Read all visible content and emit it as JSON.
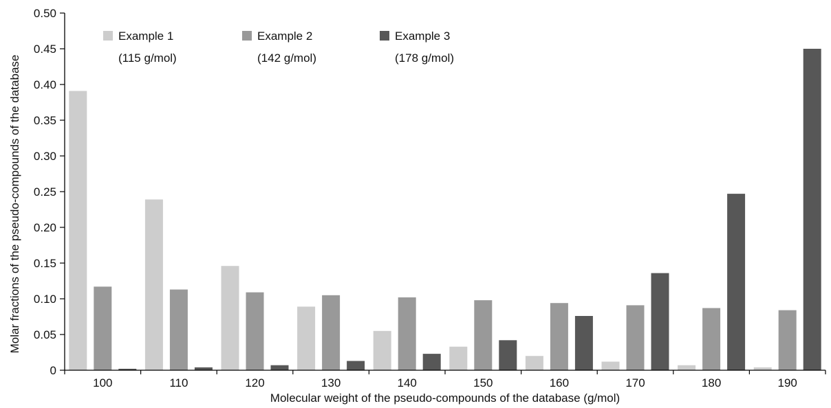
{
  "chart_data": {
    "type": "bar",
    "title": "",
    "xlabel": "Molecular weight of the pseudo-compounds of the database (g/mol)",
    "ylabel": "Molar fractions of the pseudo-compounds of the database",
    "categories": [
      "100",
      "110",
      "120",
      "130",
      "140",
      "150",
      "160",
      "170",
      "180",
      "190"
    ],
    "ylim": [
      0,
      0.5
    ],
    "yticks": [
      "0",
      "0.05",
      "0.10",
      "0.15",
      "0.20",
      "0.25",
      "0.30",
      "0.35",
      "0.40",
      "0.45",
      "0.50"
    ],
    "grid": false,
    "legend_position": "top-left",
    "series": [
      {
        "name": "Example 1",
        "note": "(115 g/mol)",
        "color": "#cdcdcd",
        "values": [
          0.391,
          0.239,
          0.146,
          0.089,
          0.055,
          0.033,
          0.02,
          0.012,
          0.007,
          0.004
        ]
      },
      {
        "name": "Example 2",
        "note": "(142 g/mol)",
        "color": "#999999",
        "values": [
          0.117,
          0.113,
          0.109,
          0.105,
          0.102,
          0.098,
          0.094,
          0.091,
          0.087,
          0.084
        ]
      },
      {
        "name": "Example 3",
        "note": "(178 g/mol)",
        "color": "#575757",
        "values": [
          0.002,
          0.004,
          0.007,
          0.013,
          0.023,
          0.042,
          0.076,
          0.136,
          0.247,
          0.45
        ]
      }
    ]
  }
}
